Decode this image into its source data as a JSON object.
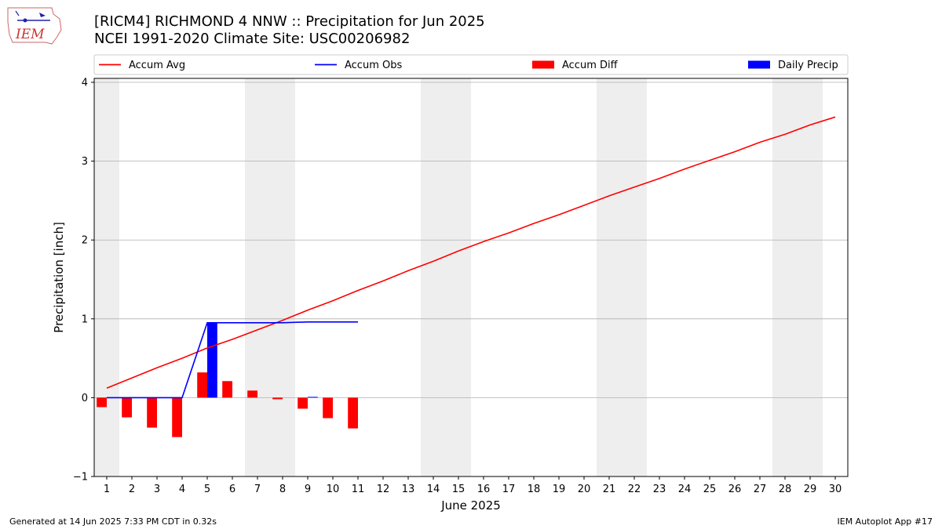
{
  "header": {
    "title": "[RICM4] RICHMOND 4 NNW :: Precipitation for Jun 2025",
    "subtitle": "NCEI 1991-2020 Climate Site: USC00206982",
    "logo_text": "IEM"
  },
  "footer": {
    "generated": "Generated at 14 Jun 2025 7:33 PM CDT in 0.32s",
    "app": "IEM Autoplot App #17"
  },
  "colors": {
    "avg": "#ff0000",
    "obs": "#0000ff",
    "diff": "#ff0000",
    "daily": "#0000ff",
    "weekend": "#eeeeee",
    "grid": "#b0b0b0"
  },
  "chart_data": {
    "type": "bar+line",
    "xlabel": "June 2025",
    "ylabel": "Precipitation [inch]",
    "ylim": [
      -1,
      4.05
    ],
    "yticks": [
      -1,
      0,
      1,
      2,
      3,
      4
    ],
    "ytick_labels": [
      "−1",
      "0",
      "1",
      "2",
      "3",
      "4"
    ],
    "xlim": [
      0.5,
      30.5
    ],
    "days": [
      1,
      2,
      3,
      4,
      5,
      6,
      7,
      8,
      9,
      10,
      11,
      12,
      13,
      14,
      15,
      16,
      17,
      18,
      19,
      20,
      21,
      22,
      23,
      24,
      25,
      26,
      27,
      28,
      29,
      30
    ],
    "xtick_labels": [
      "1",
      "2",
      "3",
      "4",
      "5",
      "6",
      "7",
      "8",
      "9",
      "10",
      "11",
      "12",
      "13",
      "14",
      "15",
      "16",
      "17",
      "18",
      "19",
      "20",
      "21",
      "22",
      "23",
      "24",
      "25",
      "26",
      "27",
      "28",
      "29",
      "30"
    ],
    "grid": "horizontal",
    "legend": {
      "placement": "top",
      "entries": [
        {
          "label": "Accum Avg",
          "kind": "line",
          "color": "#ff0000"
        },
        {
          "label": "Accum Obs",
          "kind": "line",
          "color": "#0000ff"
        },
        {
          "label": "Accum Diff",
          "kind": "bar",
          "color": "#ff0000"
        },
        {
          "label": "Daily Precip",
          "kind": "bar",
          "color": "#0000ff"
        }
      ]
    },
    "weekend_bands": [
      [
        0.5,
        1.5
      ],
      [
        6.5,
        8.5
      ],
      [
        13.5,
        15.5
      ],
      [
        20.5,
        22.5
      ],
      [
        27.5,
        29.5
      ]
    ],
    "series": [
      {
        "name": "Accum Avg",
        "type": "line",
        "x": [
          1,
          2,
          3,
          4,
          5,
          6,
          7,
          8,
          9,
          10,
          11,
          12,
          13,
          14,
          15,
          16,
          17,
          18,
          19,
          20,
          21,
          22,
          23,
          24,
          25,
          26,
          27,
          28,
          29,
          30
        ],
        "values": [
          0.12,
          0.25,
          0.38,
          0.5,
          0.63,
          0.74,
          0.86,
          0.98,
          1.11,
          1.23,
          1.36,
          1.48,
          1.61,
          1.73,
          1.86,
          1.98,
          2.09,
          2.21,
          2.32,
          2.44,
          2.56,
          2.67,
          2.78,
          2.9,
          3.01,
          3.12,
          3.24,
          3.34,
          3.46,
          3.56
        ]
      },
      {
        "name": "Accum Obs",
        "type": "line",
        "x": [
          1,
          2,
          3,
          4,
          5,
          6,
          7,
          8,
          9,
          10,
          11
        ],
        "values": [
          0.0,
          0.0,
          0.0,
          0.0,
          0.95,
          0.95,
          0.95,
          0.95,
          0.96,
          0.96,
          0.96
        ]
      },
      {
        "name": "Accum Diff",
        "type": "bar",
        "x": [
          1,
          2,
          3,
          4,
          5,
          6,
          7,
          8,
          9,
          10,
          11
        ],
        "values": [
          -0.12,
          -0.25,
          -0.38,
          -0.5,
          0.32,
          0.21,
          0.09,
          -0.02,
          -0.14,
          -0.26,
          -0.39
        ]
      },
      {
        "name": "Daily Precip",
        "type": "bar",
        "x": [
          1,
          2,
          3,
          4,
          5,
          6,
          7,
          8,
          9,
          10,
          11
        ],
        "values": [
          0.0,
          0.0,
          0.0,
          0.0,
          0.95,
          0.0,
          0.0,
          0.0,
          0.01,
          0.0,
          0.0
        ]
      }
    ]
  }
}
